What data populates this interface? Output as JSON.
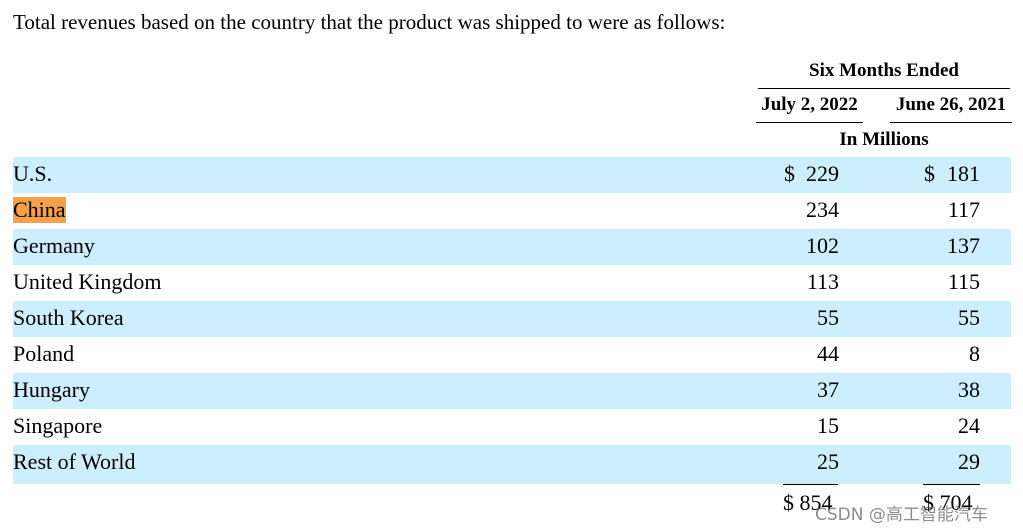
{
  "intro": "Total revenues based on the country that the product was shipped to were as follows:",
  "header": {
    "period": "Six Months Ended",
    "col1": "July 2, 2022",
    "col2": "June 26, 2021",
    "unit": "In Millions"
  },
  "currency": "$",
  "rows": [
    {
      "label": "U.S.",
      "v1": "229",
      "v2": "181"
    },
    {
      "label": "China",
      "v1": "234",
      "v2": "117"
    },
    {
      "label": "Germany",
      "v1": "102",
      "v2": "137"
    },
    {
      "label": "United Kingdom",
      "v1": "113",
      "v2": "115"
    },
    {
      "label": "South Korea",
      "v1": "55",
      "v2": "55"
    },
    {
      "label": "Poland",
      "v1": "44",
      "v2": "8"
    },
    {
      "label": "Hungary",
      "v1": "37",
      "v2": "38"
    },
    {
      "label": "Singapore",
      "v1": "15",
      "v2": "24"
    },
    {
      "label": "Rest of World",
      "v1": "25",
      "v2": "29"
    }
  ],
  "total": {
    "v1": "$ 854",
    "v2": "$ 704"
  },
  "watermark": "CSDN @高工智能汽车",
  "colors": {
    "row_shade": "#cdeefe",
    "highlight": "#f5a04b"
  }
}
